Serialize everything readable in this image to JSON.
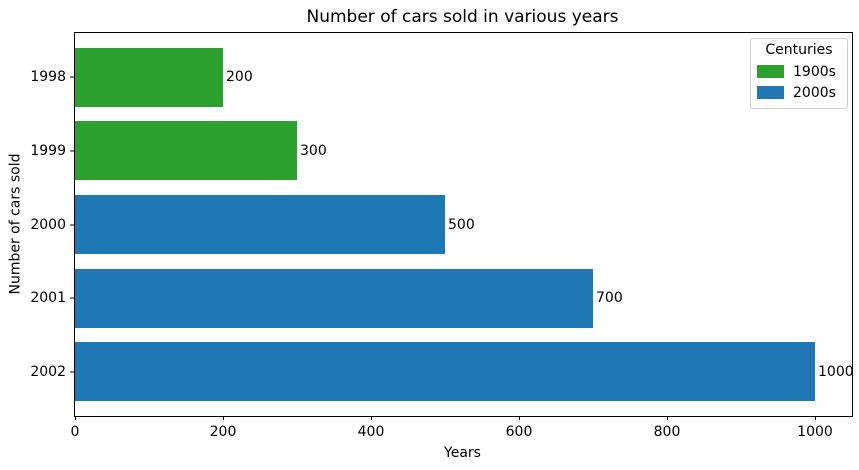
{
  "chart_data": {
    "type": "bar",
    "orientation": "horizontal",
    "title": "Number of cars sold in various years",
    "xlabel": "Years",
    "ylabel": "Number of cars sold",
    "categories": [
      "1998",
      "1999",
      "2000",
      "2001",
      "2002"
    ],
    "values": [
      200,
      300,
      500,
      700,
      1000
    ],
    "value_labels": [
      "200",
      "300",
      "500",
      "700",
      "1000"
    ],
    "bar_colors": [
      "#2ca02c",
      "#2ca02c",
      "#1f77b4",
      "#1f77b4",
      "#1f77b4"
    ],
    "xticks": [
      0,
      200,
      400,
      600,
      800,
      1000
    ],
    "xlim": [
      0,
      1050
    ],
    "grid": false,
    "legend": {
      "title": "Centuries",
      "position": "top-right",
      "entries": [
        {
          "label": "1900s",
          "color": "#2ca02c"
        },
        {
          "label": "2000s",
          "color": "#1f77b4"
        }
      ]
    },
    "colors": {
      "green_1900s": "#2ca02c",
      "blue_2000s": "#1f77b4",
      "spine": "#000000",
      "legend_border": "#cccccc",
      "background": "#ffffff"
    }
  }
}
